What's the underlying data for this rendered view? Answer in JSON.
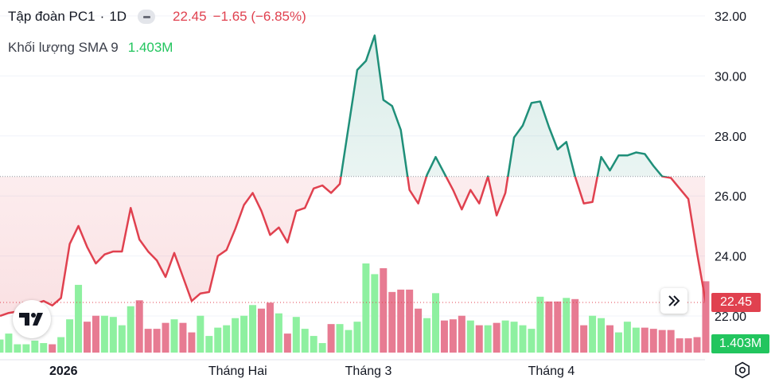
{
  "legend": {
    "symbol": "Tập đoàn PC1",
    "separator": "·",
    "interval": "1D",
    "last_price": "22.45",
    "change": "−1.65 (−6.85%)",
    "volume_label": "Khối lượng SMA 9",
    "volume_value": "1.403M"
  },
  "price_tag": "22.45",
  "volume_tag": "1.403M",
  "icons": {
    "collapse": "minus-pill-icon",
    "scroll": "double-chevron-right-icon",
    "logo": "tradingview-logo-icon",
    "settings": "settings-icon"
  },
  "colors": {
    "up": "#1f8f79",
    "down": "#e0414f",
    "vol_up": "#8ef0a0",
    "vol_down": "#e77b92",
    "sma_badge": "#22c55e"
  },
  "chart_data": {
    "type": "area",
    "ylim": [
      21.2,
      32.6
    ],
    "yticks": [
      "32.00",
      "30.00",
      "28.00",
      "26.00",
      "24.00",
      "22.00"
    ],
    "ytick_values": [
      32,
      30,
      28,
      26,
      24,
      22
    ],
    "xticks": [
      {
        "label": "2026",
        "index": 5
      },
      {
        "label": "Tháng Hai",
        "index": 25
      },
      {
        "label": "Tháng 3",
        "index": 40
      },
      {
        "label": "Tháng 4",
        "index": 61
      }
    ],
    "baseline": 26.65,
    "series": [
      {
        "values": [
          22.0,
          22.1,
          22.15,
          22.3,
          22.4,
          22.5,
          22.35,
          22.6,
          24.4,
          25.0,
          24.3,
          23.75,
          24.05,
          24.15,
          24.15,
          25.6,
          24.55,
          24.15,
          23.85,
          23.3,
          24.1,
          23.3,
          22.5,
          22.75,
          22.8,
          24.0,
          24.2,
          24.9,
          25.7,
          26.1,
          25.5,
          24.7,
          24.95,
          24.45,
          25.5,
          25.6,
          26.25,
          26.35,
          26.1,
          26.4,
          28.3,
          30.2,
          30.5,
          31.35,
          29.2,
          29.0,
          28.2,
          26.2,
          25.75,
          26.7,
          27.3,
          26.75,
          26.2,
          25.55,
          26.2,
          25.75,
          26.65,
          25.35,
          26.1,
          27.95,
          28.35,
          29.1,
          29.15,
          28.3,
          27.55,
          27.8,
          26.65,
          25.75,
          25.8,
          27.3,
          26.85,
          27.35,
          27.35,
          27.45,
          27.4,
          27.0,
          26.65,
          26.6,
          26.25,
          25.9,
          24.1,
          22.45
        ]
      }
    ],
    "volume": {
      "label": "Khối lượng",
      "sma_label": "SMA 9",
      "max": 3.75,
      "values": [
        0.55,
        0.8,
        0.35,
        0.35,
        0.5,
        0.4,
        0.35,
        0.65,
        1.4,
        2.85,
        1.3,
        1.55,
        1.55,
        1.5,
        1.15,
        1.95,
        2.2,
        1.0,
        1.0,
        1.25,
        1.4,
        1.25,
        0.85,
        1.55,
        0.7,
        1.05,
        1.15,
        1.45,
        1.55,
        2.0,
        1.85,
        2.1,
        1.65,
        0.8,
        1.5,
        1.0,
        0.7,
        0.4,
        1.2,
        1.2,
        0.95,
        1.3,
        3.75,
        3.3,
        3.55,
        2.55,
        2.65,
        2.65,
        1.85,
        1.45,
        2.5,
        1.35,
        1.4,
        1.55,
        1.35,
        1.15,
        1.15,
        1.25,
        1.35,
        1.3,
        1.15,
        1.0,
        2.35,
        2.15,
        2.15,
        2.3,
        2.25,
        1.15,
        1.55,
        1.45,
        1.15,
        0.85,
        1.3,
        1.05,
        1.05,
        1.0,
        0.95,
        0.95,
        0.6,
        0.6,
        0.65,
        3.0
      ]
    }
  }
}
